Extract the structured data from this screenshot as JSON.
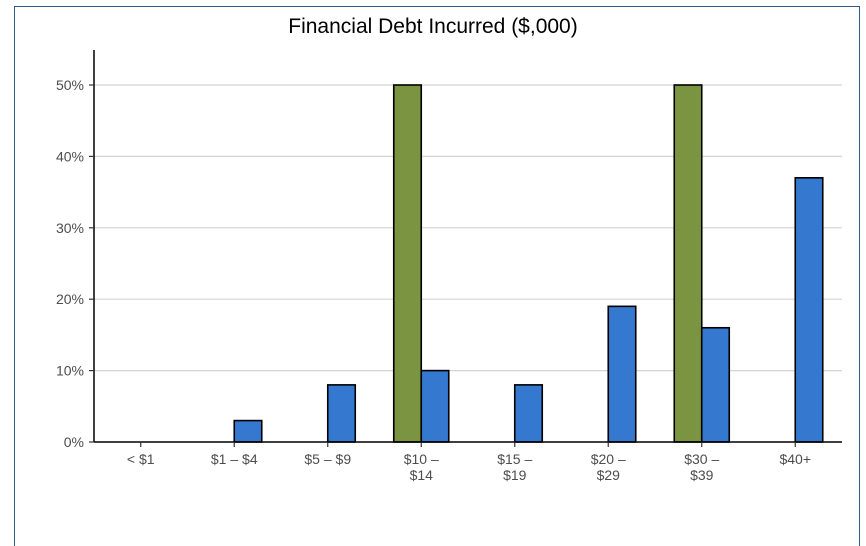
{
  "chart_data": {
    "type": "bar",
    "title": "Financial Debt Incurred ($,000)",
    "xlabel": "",
    "ylabel": "",
    "categories": [
      [
        "< $1"
      ],
      [
        "$1 – $4"
      ],
      [
        "$5 – $9"
      ],
      [
        "$10 –",
        "$14"
      ],
      [
        "$15 –",
        "$19"
      ],
      [
        "$20 –",
        "$29"
      ],
      [
        "$30 –",
        "$39"
      ],
      [
        "$40+"
      ]
    ],
    "series": [
      {
        "color": "#7a9441",
        "values": [
          0,
          0,
          0,
          50,
          0,
          0,
          50,
          0
        ]
      },
      {
        "color": "#3578d0",
        "values": [
          0,
          3,
          8,
          10,
          8,
          19,
          16,
          37
        ]
      }
    ],
    "yticks": [
      0,
      10,
      20,
      30,
      40,
      50
    ],
    "ytick_labels": [
      "0%",
      "10%",
      "20%",
      "30%",
      "40%",
      "50%"
    ],
    "ylim": [
      0,
      50
    ],
    "grid": true,
    "legend": "none"
  }
}
